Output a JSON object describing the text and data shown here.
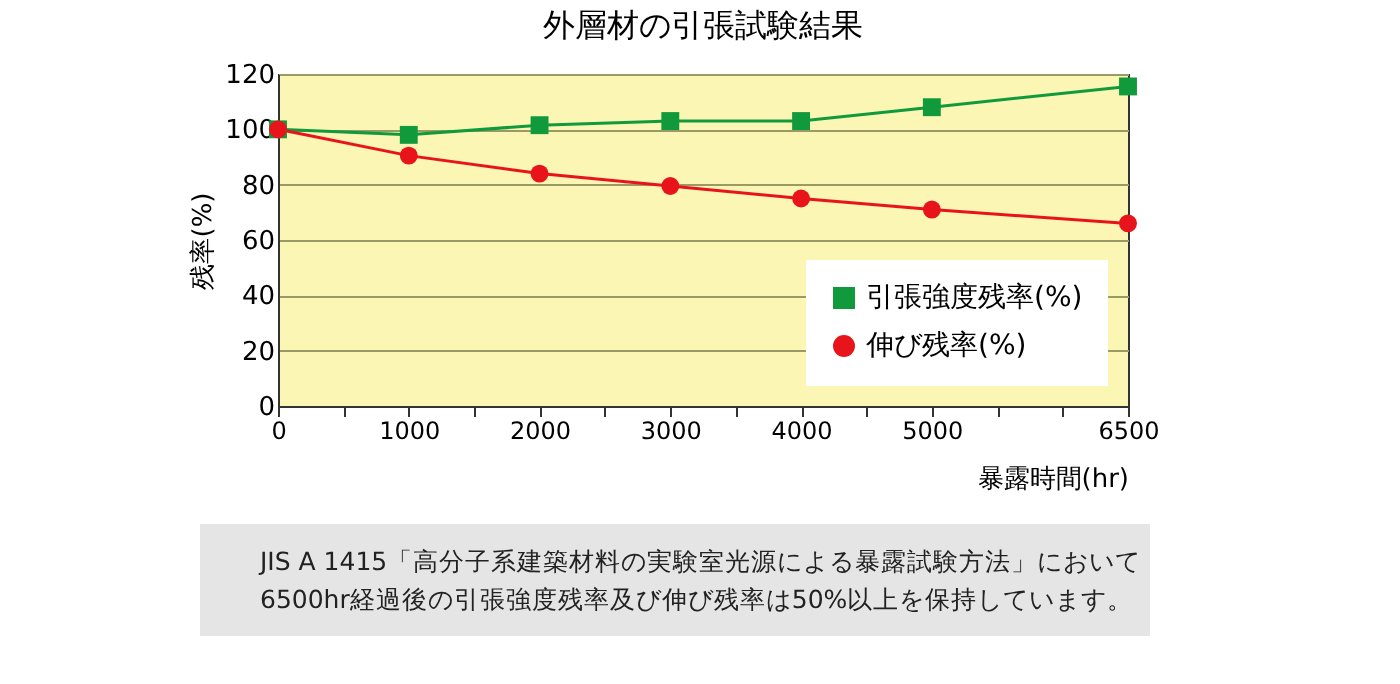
{
  "chart_data": {
    "type": "line",
    "title": "外層材の引張試験結果",
    "xlabel": "暴露時間(hr)",
    "ylabel": "残率(%)",
    "x": [
      0,
      1000,
      2000,
      3000,
      4000,
      5000,
      6500
    ],
    "xlim": [
      0,
      6500
    ],
    "xticks": [
      0,
      {
        "value": 500,
        "label": null
      },
      1000,
      {
        "value": 1500,
        "label": null
      },
      2000,
      {
        "value": 2500,
        "label": null
      },
      3000,
      {
        "value": 3500,
        "label": null
      },
      4000,
      {
        "value": 4500,
        "label": null
      },
      5000,
      {
        "value": 5500,
        "label": null
      },
      {
        "value": 6000,
        "label": null
      },
      6500
    ],
    "ylim": [
      0,
      120
    ],
    "yticks": [
      0,
      20,
      40,
      60,
      80,
      100,
      120
    ],
    "series": [
      {
        "name": "引張強度残率(%)",
        "color": "#109a3c",
        "marker": "square",
        "values": [
          100,
          98,
          101.5,
          103,
          103,
          108,
          115.5
        ]
      },
      {
        "name": "伸び残率(%)",
        "color": "#e8141c",
        "marker": "circle",
        "values": [
          100,
          90.5,
          84,
          79.5,
          75,
          71,
          66
        ]
      }
    ],
    "grid": "y",
    "legend": "bottom right",
    "line_style": "solid",
    "annotations": [
      "JIS A 1415「高分子系建築材料の実験室光源による暴露試験方法」において\n6500hr経過後の引張強度残率及び伸び残率は50%以上を保持しています。"
    ]
  }
}
